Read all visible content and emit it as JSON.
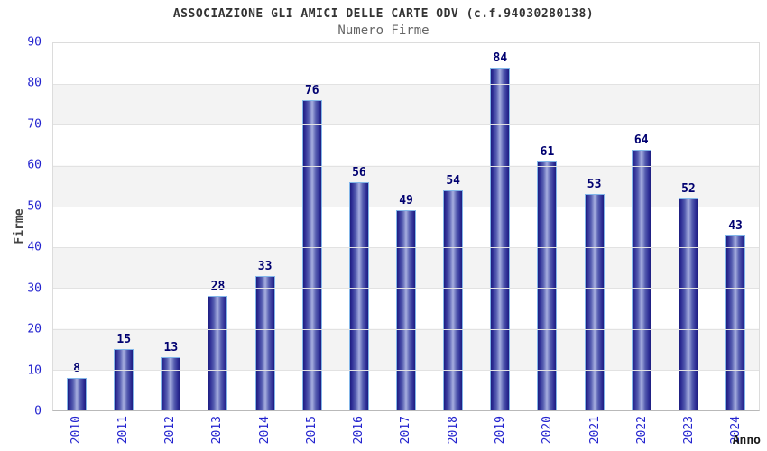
{
  "header": {
    "title": "ASSOCIAZIONE GLI AMICI DELLE CARTE ODV (c.f.94030280138)",
    "subtitle": "Numero Firme"
  },
  "chart_data": {
    "type": "bar",
    "title": "ASSOCIAZIONE GLI AMICI DELLE CARTE ODV (c.f.94030280138)",
    "subtitle": "Numero Firme",
    "categories": [
      "2010",
      "2011",
      "2012",
      "2013",
      "2014",
      "2015",
      "2016",
      "2017",
      "2018",
      "2019",
      "2020",
      "2021",
      "2022",
      "2023",
      "2024"
    ],
    "values": [
      8,
      15,
      13,
      28,
      33,
      76,
      56,
      49,
      54,
      84,
      61,
      53,
      64,
      52,
      43
    ],
    "xlabel": "Anno",
    "ylabel": "Firme",
    "ylim": [
      0,
      90
    ],
    "yticks": [
      0,
      10,
      20,
      30,
      40,
      50,
      60,
      70,
      80,
      90
    ],
    "grid": true,
    "legend": false,
    "colors": {
      "bar_edge": "#82b6e9",
      "bar_dark": "#1d1d7e",
      "bar_light": "#aab2e0",
      "value_label": "#000070",
      "tick_label": "#2323cf",
      "band_gray": "#f3f3f3",
      "title": "#333333",
      "subtitle": "#666666"
    }
  }
}
